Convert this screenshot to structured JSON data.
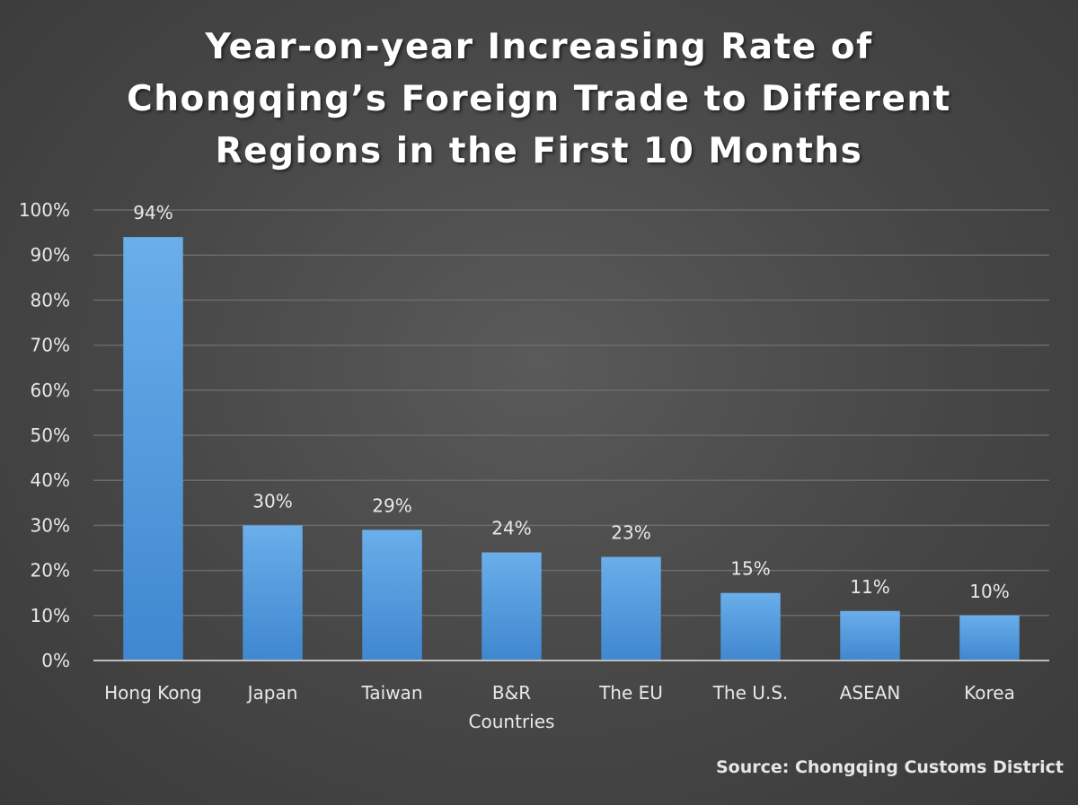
{
  "chart_data": {
    "type": "bar",
    "title_lines": [
      "Year-on-year Increasing Rate of",
      "Chongqing’s Foreign Trade to Different",
      "Regions in the First 10 Months"
    ],
    "categories": [
      [
        "Hong Kong"
      ],
      [
        "Japan"
      ],
      [
        "Taiwan"
      ],
      [
        "B&R",
        "Countries"
      ],
      [
        "The EU"
      ],
      [
        "The U.S."
      ],
      [
        "ASEAN"
      ],
      [
        "Korea"
      ]
    ],
    "values": [
      94,
      30,
      29,
      24,
      23,
      15,
      11,
      10
    ],
    "data_labels": [
      "94%",
      "30%",
      "29%",
      "24%",
      "23%",
      "15%",
      "11%",
      "10%"
    ],
    "y_ticks": [
      "0%",
      "10%",
      "20%",
      "30%",
      "40%",
      "50%",
      "60%",
      "70%",
      "80%",
      "90%",
      "100%"
    ],
    "ylim": [
      0,
      100
    ],
    "grid": true,
    "legend": "none",
    "source": "Source: Chongqing Customs District",
    "colors": {
      "bar_top": "#6aaeea",
      "bar_bottom": "#3f87cf",
      "gridline": "#6b6b6b",
      "axis_line": "#bdbdbd",
      "text": "#e8e8e8",
      "title": "#ffffff"
    }
  }
}
